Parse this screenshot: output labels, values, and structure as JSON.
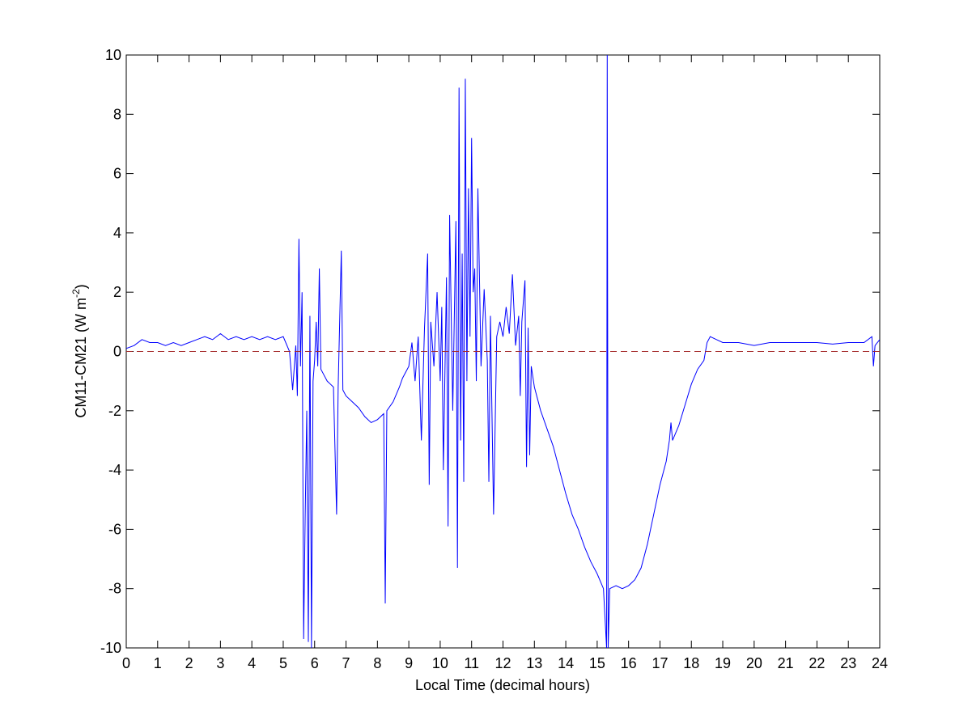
{
  "chart_data": {
    "type": "line",
    "xlabel": "Local Time (decimal hours)",
    "ylabel": [
      "CM11-CM21 (W m",
      "-2",
      ")"
    ],
    "x": [
      0,
      0.25,
      0.5,
      0.75,
      1,
      1.25,
      1.5,
      1.75,
      2,
      2.25,
      2.5,
      2.75,
      3,
      3.25,
      3.5,
      3.75,
      4,
      4.25,
      4.5,
      4.75,
      5,
      5.2,
      5.3,
      5.4,
      5.45,
      5.5,
      5.55,
      5.6,
      5.65,
      5.7,
      5.75,
      5.8,
      5.85,
      5.9,
      5.95,
      6,
      6.05,
      6.1,
      6.15,
      6.2,
      6.3,
      6.4,
      6.5,
      6.6,
      6.7,
      6.75,
      6.85,
      6.9,
      7,
      7.2,
      7.4,
      7.6,
      7.8,
      8,
      8.2,
      8.25,
      8.3,
      8.5,
      8.7,
      8.8,
      9,
      9.1,
      9.2,
      9.3,
      9.4,
      9.5,
      9.6,
      9.65,
      9.7,
      9.8,
      9.9,
      10,
      10.05,
      10.1,
      10.2,
      10.25,
      10.3,
      10.4,
      10.5,
      10.55,
      10.6,
      10.65,
      10.7,
      10.75,
      10.8,
      10.85,
      10.9,
      10.95,
      11,
      11.05,
      11.1,
      11.15,
      11.2,
      11.3,
      11.4,
      11.5,
      11.55,
      11.6,
      11.7,
      11.8,
      11.9,
      12,
      12.1,
      12.2,
      12.3,
      12.4,
      12.5,
      12.55,
      12.6,
      12.7,
      12.75,
      12.8,
      12.85,
      12.9,
      13,
      13.2,
      13.4,
      13.6,
      13.8,
      14,
      14.2,
      14.4,
      14.6,
      14.8,
      15,
      15.2,
      15.3,
      15.32,
      15.35,
      15.4,
      15.6,
      15.8,
      16,
      16.2,
      16.4,
      16.6,
      16.8,
      17,
      17.2,
      17.3,
      17.35,
      17.4,
      17.6,
      17.8,
      18,
      18.2,
      18.4,
      18.5,
      18.6,
      18.8,
      19,
      19.5,
      20,
      20.5,
      21,
      21.5,
      22,
      22.5,
      23,
      23.5,
      23.75,
      23.8,
      23.85,
      24
    ],
    "series": [
      {
        "color": "#0000ff",
        "values": [
          0.1,
          0.2,
          0.4,
          0.3,
          0.3,
          0.2,
          0.3,
          0.2,
          0.3,
          0.4,
          0.5,
          0.4,
          0.6,
          0.4,
          0.5,
          0.4,
          0.5,
          0.4,
          0.5,
          0.4,
          0.5,
          0,
          -1.3,
          0.2,
          -1.5,
          3.8,
          -0.5,
          2,
          -9.7,
          -5.5,
          -2,
          -9.8,
          1.2,
          -10,
          -1,
          -0.3,
          1,
          -0.5,
          2.8,
          -0.6,
          -0.8,
          -1,
          -1.1,
          -1.2,
          -5.5,
          -1.2,
          3.4,
          -1.3,
          -1.5,
          -1.7,
          -1.9,
          -2.2,
          -2.4,
          -2.3,
          -2.1,
          -8.5,
          -2,
          -1.7,
          -1.2,
          -0.9,
          -0.5,
          0.3,
          -1,
          0.5,
          -3,
          0.8,
          3.3,
          -4.5,
          1,
          -0.5,
          2,
          -1,
          1.5,
          -4,
          2.5,
          -5.9,
          4.6,
          -2,
          4.4,
          -7.3,
          8.9,
          -3,
          3.3,
          -4.4,
          9.2,
          -1,
          5.5,
          0.5,
          7.2,
          2,
          2.8,
          -1,
          5.5,
          -0.5,
          2.1,
          -0.3,
          -4.4,
          1.2,
          -5.5,
          0.5,
          1,
          0.5,
          1.5,
          0.6,
          2.6,
          0.2,
          1.2,
          -1.5,
          1,
          2.4,
          -3.9,
          0.8,
          -3.5,
          -0.5,
          -1.2,
          -2,
          -2.6,
          -3.2,
          -4,
          -4.8,
          -5.5,
          -6,
          -6.6,
          -7.1,
          -7.5,
          -8,
          -10,
          10,
          -10,
          -8,
          -7.9,
          -8,
          -7.9,
          -7.7,
          -7.3,
          -6.5,
          -5.5,
          -4.5,
          -3.7,
          -3,
          -2.4,
          -3,
          -2.5,
          -1.8,
          -1.1,
          -0.6,
          -0.3,
          0.3,
          0.5,
          0.4,
          0.3,
          0.3,
          0.2,
          0.3,
          0.3,
          0.3,
          0.3,
          0.25,
          0.3,
          0.3,
          0.5,
          -0.5,
          0.2,
          0.4
        ]
      }
    ],
    "reference_line": {
      "y": 0,
      "color": "#a52a2a",
      "dashed": true
    },
    "xlim": [
      0,
      24
    ],
    "xticks": [
      0,
      1,
      2,
      3,
      4,
      5,
      6,
      7,
      8,
      9,
      10,
      11,
      12,
      13,
      14,
      15,
      16,
      17,
      18,
      19,
      20,
      21,
      22,
      23,
      24
    ],
    "ylim": [
      -10,
      10
    ],
    "yticks": [
      -10,
      -8,
      -6,
      -4,
      -2,
      0,
      2,
      4,
      6,
      8,
      10
    ]
  }
}
